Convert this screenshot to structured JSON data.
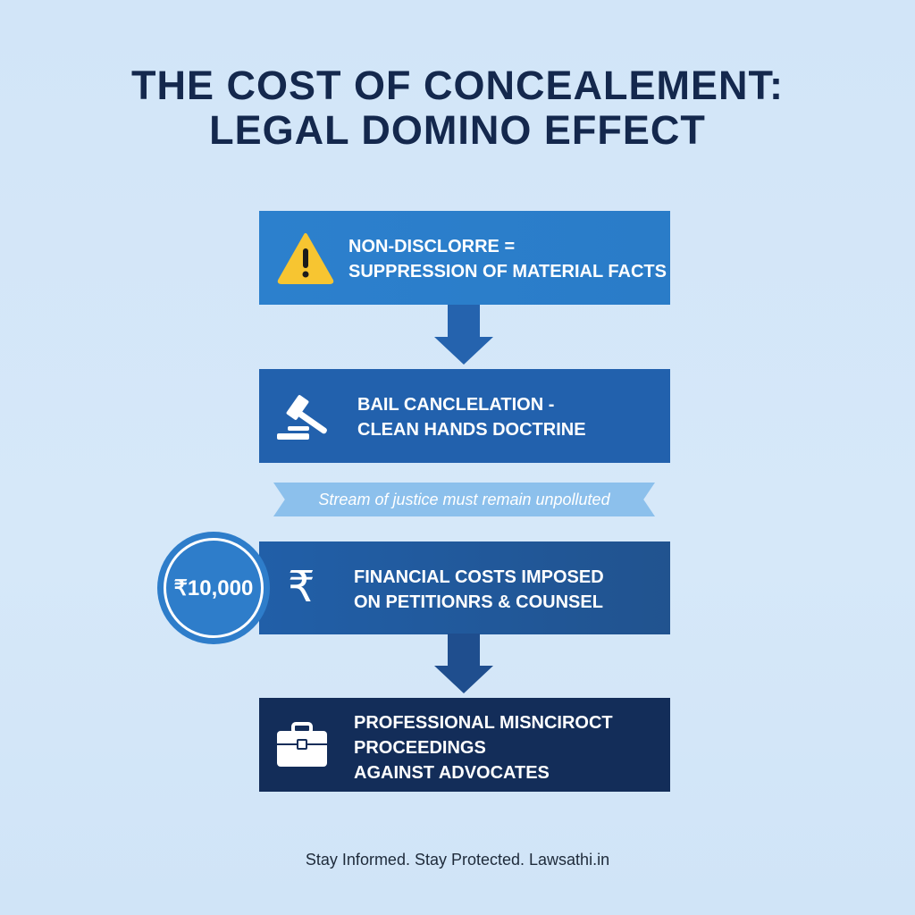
{
  "title": {
    "line1": "THE COST OF CONCEALEMENT:",
    "line2": "LEGAL DOMINO EFFECT"
  },
  "steps": [
    {
      "icon": "warning-icon",
      "line1": "NON-DISCLORRE =",
      "line2": "SUPPRESSION OF MATERIAL FACTS",
      "color": "#2b7fcc"
    },
    {
      "icon": "gavel-icon",
      "line1": "BAIL CANCLELATION -",
      "line2": "CLEAN HANDS DOCTRINE",
      "color": "#2261ad"
    },
    {
      "icon": "rupee-icon",
      "line1": "FINANCIAL COSTS IMPOSED",
      "line2": "ON PETITIONRS & COUNSEL",
      "color": "#21589c"
    },
    {
      "icon": "briefcase-icon",
      "line1": "PROFESSIONAL MISNCIROCT",
      "line2": "PROCEEDINGS",
      "line3": "AGAINST ADVOCATES",
      "color": "#132d59"
    }
  ],
  "banner": "Stream of justice must remain unpolluted",
  "cost_badge": "₹10,000",
  "footer": "Stay Informed. Stay Protected. Lawsathi.in"
}
